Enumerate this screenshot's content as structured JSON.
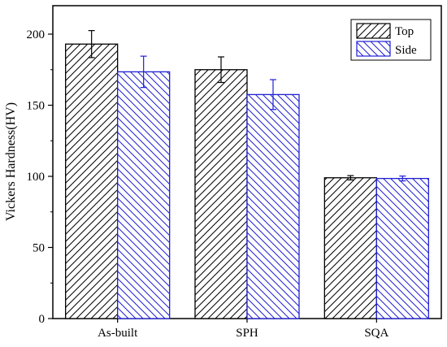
{
  "chart_data": {
    "type": "bar",
    "categories": [
      "As-built",
      "SPH",
      "SQA"
    ],
    "series": [
      {
        "name": "Top",
        "values": [
          193,
          175,
          99
        ],
        "errors": [
          9.5,
          9,
          1.5
        ],
        "color": "#000000",
        "hatch": "forward-diagonal"
      },
      {
        "name": "Side",
        "values": [
          173.5,
          157.5,
          98.5
        ],
        "errors": [
          11,
          10.5,
          1.7
        ],
        "color": "#1f1fd6",
        "hatch": "backward-diagonal"
      }
    ],
    "title": "",
    "xlabel": "",
    "ylabel": "Vickers Hardness(HV)",
    "ylim": [
      0,
      220
    ],
    "yticks": [
      0,
      50,
      100,
      150,
      200
    ],
    "grid": false,
    "legend_position": "top-right"
  }
}
